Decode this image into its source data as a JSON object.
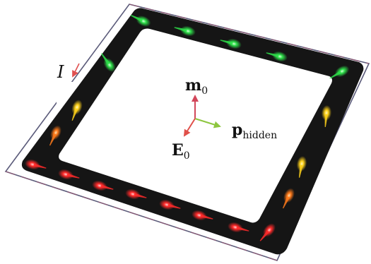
{
  "labels": {
    "current": "I",
    "magnetic_moment": "m",
    "magnetic_moment_sub": "0",
    "hidden_polarization": "p",
    "hidden_polarization_sub": "hidden",
    "electric_field": "E",
    "electric_field_sub": "0"
  },
  "colors": {
    "ring_fill": "#151515",
    "wire": "#5b5b7a",
    "current_arrow": "#e05050",
    "m0_arrow": "#d2465a",
    "p_hidden_arrow": "#8dc63f",
    "e0_arrow": "#e0504a",
    "glow_red": "#ff2a2a",
    "glow_orange": "#ff7a1a",
    "glow_yellow": "#ffd21a",
    "glow_green": "#2ee04a"
  },
  "icons": {
    "current": "arrow-left-icon",
    "spins": "glowing-arrow-icon"
  }
}
